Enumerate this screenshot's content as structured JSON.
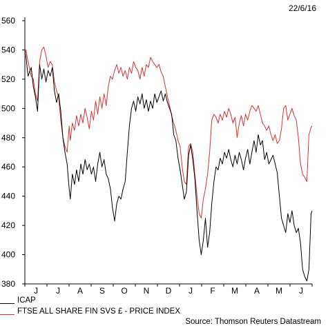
{
  "header": {
    "date": "22/6/16"
  },
  "source": "Source: Thomson Reuters Datastream",
  "chart_data": {
    "type": "line",
    "title": "",
    "xlabel": "",
    "ylabel": "",
    "ylim": [
      380,
      560
    ],
    "yticks": [
      380,
      400,
      420,
      440,
      460,
      480,
      500,
      520,
      540,
      560
    ],
    "x_tick_labels": [
      "J",
      "J",
      "A",
      "S",
      "O",
      "N",
      "D",
      "J",
      "F",
      "M",
      "A",
      "M",
      "J"
    ],
    "grid": false,
    "legend_position": "bottom-left",
    "series": [
      {
        "name": "ICAP",
        "color": "#000000",
        "points": [
          [
            0,
            538
          ],
          [
            1,
            536
          ],
          [
            3,
            522
          ],
          [
            6,
            528
          ],
          [
            8,
            515
          ],
          [
            10,
            508
          ],
          [
            12,
            498
          ],
          [
            14,
            530
          ],
          [
            16,
            520
          ],
          [
            18,
            527
          ],
          [
            20,
            518
          ],
          [
            22,
            526
          ],
          [
            24,
            522
          ],
          [
            26,
            528
          ],
          [
            28,
            512
          ],
          [
            30,
            504
          ],
          [
            32,
            510
          ],
          [
            34,
            498
          ],
          [
            36,
            480
          ],
          [
            38,
            470
          ],
          [
            40,
            462
          ],
          [
            42,
            445
          ],
          [
            43,
            438
          ],
          [
            45,
            455
          ],
          [
            47,
            448
          ],
          [
            49,
            458
          ],
          [
            51,
            450
          ],
          [
            53,
            462
          ],
          [
            55,
            455
          ],
          [
            57,
            465
          ],
          [
            59,
            458
          ],
          [
            61,
            462
          ],
          [
            63,
            455
          ],
          [
            65,
            460
          ],
          [
            67,
            450
          ],
          [
            69,
            462
          ],
          [
            71,
            470
          ],
          [
            73,
            460
          ],
          [
            75,
            465
          ],
          [
            77,
            455
          ],
          [
            79,
            452
          ],
          [
            81,
            445
          ],
          [
            83,
            432
          ],
          [
            85,
            423
          ],
          [
            87,
            435
          ],
          [
            89,
            440
          ],
          [
            91,
            438
          ],
          [
            93,
            445
          ],
          [
            95,
            450
          ],
          [
            97,
            470
          ],
          [
            99,
            488
          ],
          [
            101,
            500
          ],
          [
            103,
            505
          ],
          [
            105,
            498
          ],
          [
            107,
            508
          ],
          [
            109,
            503
          ],
          [
            111,
            510
          ],
          [
            113,
            500
          ],
          [
            115,
            506
          ],
          [
            117,
            498
          ],
          [
            119,
            505
          ],
          [
            121,
            500
          ],
          [
            123,
            510
          ],
          [
            125,
            504
          ],
          [
            127,
            508
          ],
          [
            129,
            512
          ],
          [
            131,
            505
          ],
          [
            133,
            510
          ],
          [
            135,
            504
          ],
          [
            137,
            500
          ],
          [
            139,
            496
          ],
          [
            141,
            482
          ],
          [
            143,
            478
          ],
          [
            145,
            466
          ],
          [
            147,
            458
          ],
          [
            149,
            448
          ],
          [
            151,
            438
          ],
          [
            153,
            443
          ],
          [
            155,
            468
          ],
          [
            157,
            475
          ],
          [
            159,
            465
          ],
          [
            161,
            452
          ],
          [
            163,
            430
          ],
          [
            165,
            410
          ],
          [
            167,
            400
          ],
          [
            169,
            410
          ],
          [
            171,
            425
          ],
          [
            173,
            405
          ],
          [
            175,
            415
          ],
          [
            177,
            435
          ],
          [
            179,
            450
          ],
          [
            181,
            460
          ],
          [
            183,
            458
          ],
          [
            185,
            466
          ],
          [
            187,
            462
          ],
          [
            189,
            470
          ],
          [
            191,
            466
          ],
          [
            193,
            472
          ],
          [
            195,
            465
          ],
          [
            197,
            460
          ],
          [
            199,
            468
          ],
          [
            201,
            462
          ],
          [
            203,
            470
          ],
          [
            205,
            465
          ],
          [
            207,
            458
          ],
          [
            209,
            466
          ],
          [
            211,
            472
          ],
          [
            213,
            462
          ],
          [
            215,
            470
          ],
          [
            217,
            478
          ],
          [
            219,
            470
          ],
          [
            221,
            482
          ],
          [
            223,
            475
          ],
          [
            225,
            478
          ],
          [
            227,
            465
          ],
          [
            229,
            470
          ],
          [
            231,
            462
          ],
          [
            233,
            465
          ],
          [
            235,
            468
          ],
          [
            237,
            462
          ],
          [
            239,
            456
          ],
          [
            241,
            440
          ],
          [
            243,
            425
          ],
          [
            245,
            420
          ],
          [
            247,
            415
          ],
          [
            249,
            428
          ],
          [
            251,
            422
          ],
          [
            253,
            430
          ],
          [
            255,
            420
          ],
          [
            257,
            415
          ],
          [
            259,
            418
          ],
          [
            261,
            408
          ],
          [
            263,
            390
          ],
          [
            265,
            385
          ],
          [
            267,
            382
          ],
          [
            269,
            390
          ],
          [
            271,
            428
          ],
          [
            272,
            430
          ]
        ]
      },
      {
        "name": "FTSE ALL SHARE FIN SVS £ - PRICE INDEX",
        "color": "#e03030",
        "points": [
          [
            0,
            536
          ],
          [
            1,
            540
          ],
          [
            3,
            532
          ],
          [
            6,
            522
          ],
          [
            8,
            520
          ],
          [
            10,
            510
          ],
          [
            12,
            505
          ],
          [
            14,
            532
          ],
          [
            16,
            540
          ],
          [
            18,
            542
          ],
          [
            20,
            536
          ],
          [
            22,
            528
          ],
          [
            24,
            532
          ],
          [
            26,
            530
          ],
          [
            28,
            518
          ],
          [
            30,
            512
          ],
          [
            32,
            508
          ],
          [
            34,
            492
          ],
          [
            36,
            480
          ],
          [
            38,
            474
          ],
          [
            40,
            470
          ],
          [
            42,
            488
          ],
          [
            43,
            478
          ],
          [
            45,
            490
          ],
          [
            47,
            485
          ],
          [
            49,
            495
          ],
          [
            51,
            488
          ],
          [
            53,
            496
          ],
          [
            55,
            490
          ],
          [
            57,
            500
          ],
          [
            59,
            494
          ],
          [
            61,
            486
          ],
          [
            63,
            498
          ],
          [
            65,
            492
          ],
          [
            67,
            505
          ],
          [
            69,
            496
          ],
          [
            71,
            508
          ],
          [
            73,
            500
          ],
          [
            75,
            510
          ],
          [
            77,
            502
          ],
          [
            79,
            515
          ],
          [
            81,
            522
          ],
          [
            83,
            520
          ],
          [
            85,
            526
          ],
          [
            87,
            530
          ],
          [
            89,
            524
          ],
          [
            91,
            528
          ],
          [
            93,
            522
          ],
          [
            95,
            526
          ],
          [
            97,
            520
          ],
          [
            99,
            528
          ],
          [
            101,
            524
          ],
          [
            103,
            532
          ],
          [
            105,
            528
          ],
          [
            107,
            526
          ],
          [
            109,
            520
          ],
          [
            111,
            528
          ],
          [
            113,
            522
          ],
          [
            115,
            530
          ],
          [
            117,
            528
          ],
          [
            119,
            535
          ],
          [
            121,
            532
          ],
          [
            123,
            530
          ],
          [
            125,
            528
          ],
          [
            127,
            530
          ],
          [
            129,
            525
          ],
          [
            131,
            522
          ],
          [
            133,
            515
          ],
          [
            135,
            508
          ],
          [
            137,
            502
          ],
          [
            139,
            495
          ],
          [
            141,
            490
          ],
          [
            143,
            485
          ],
          [
            145,
            478
          ],
          [
            147,
            474
          ],
          [
            149,
            460
          ],
          [
            151,
            450
          ],
          [
            153,
            448
          ],
          [
            155,
            474
          ],
          [
            157,
            476
          ],
          [
            159,
            470
          ],
          [
            161,
            455
          ],
          [
            163,
            440
          ],
          [
            165,
            428
          ],
          [
            167,
            425
          ],
          [
            169,
            438
          ],
          [
            171,
            445
          ],
          [
            173,
            455
          ],
          [
            175,
            470
          ],
          [
            177,
            492
          ],
          [
            179,
            496
          ],
          [
            181,
            494
          ],
          [
            183,
            490
          ],
          [
            185,
            496
          ],
          [
            187,
            492
          ],
          [
            189,
            498
          ],
          [
            191,
            494
          ],
          [
            193,
            500
          ],
          [
            195,
            496
          ],
          [
            197,
            490
          ],
          [
            199,
            494
          ],
          [
            201,
            480
          ],
          [
            203,
            490
          ],
          [
            205,
            495
          ],
          [
            207,
            488
          ],
          [
            209,
            496
          ],
          [
            211,
            492
          ],
          [
            213,
            498
          ],
          [
            215,
            502
          ],
          [
            217,
            500
          ],
          [
            219,
            498
          ],
          [
            221,
            502
          ],
          [
            223,
            496
          ],
          [
            225,
            490
          ],
          [
            227,
            488
          ],
          [
            229,
            485
          ],
          [
            231,
            488
          ],
          [
            233,
            482
          ],
          [
            235,
            478
          ],
          [
            237,
            482
          ],
          [
            239,
            476
          ],
          [
            241,
            478
          ],
          [
            243,
            486
          ],
          [
            245,
            500
          ],
          [
            247,
            502
          ],
          [
            249,
            492
          ],
          [
            251,
            496
          ],
          [
            253,
            500
          ],
          [
            255,
            495
          ],
          [
            257,
            492
          ],
          [
            259,
            480
          ],
          [
            261,
            462
          ],
          [
            263,
            455
          ],
          [
            265,
            453
          ],
          [
            267,
            450
          ],
          [
            269,
            482
          ],
          [
            271,
            487
          ],
          [
            272,
            488
          ]
        ]
      }
    ]
  },
  "legend": {
    "items": [
      {
        "label": "ICAP",
        "color": "#000000"
      },
      {
        "label": "FTSE ALL SHARE FIN SVS £ - PRICE INDEX",
        "color": "#e03030"
      }
    ]
  }
}
